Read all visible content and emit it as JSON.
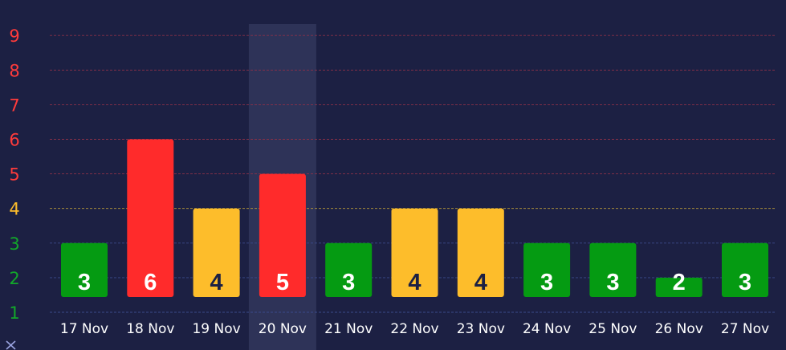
{
  "chart_data": {
    "type": "bar",
    "categories": [
      "17 Nov",
      "18 Nov",
      "19 Nov",
      "20 Nov",
      "21 Nov",
      "22 Nov",
      "23 Nov",
      "24 Nov",
      "25 Nov",
      "26 Nov",
      "27 Nov"
    ],
    "values": [
      3,
      6,
      4,
      5,
      3,
      4,
      4,
      3,
      3,
      2,
      3
    ],
    "ylim": [
      1,
      9
    ],
    "yticks": [
      1,
      2,
      3,
      4,
      5,
      6,
      7,
      8,
      9
    ],
    "highlighted_category": "20 Nov",
    "grid": true,
    "legend": "none"
  },
  "colors": {
    "background": "#1c2043",
    "highlight_band": "#2e3358",
    "low": "#059b12",
    "medium": "#fdbd2b",
    "high": "#ff2b2b",
    "grid_low": "#3a4a8a",
    "grid_medium": "#b89a3a",
    "grid_high": "#8a3048",
    "tick_low": "#12a82a",
    "tick_medium": "#fdbd2b",
    "tick_high": "#ff3b3b",
    "label_dark": "#1c2043",
    "label_light": "#ffffff",
    "x_icon": "#9aa3e0"
  },
  "color_thresholds": {
    "medium_from": 4,
    "high_from": 5
  },
  "icons": {
    "corner": "close-x-icon"
  }
}
